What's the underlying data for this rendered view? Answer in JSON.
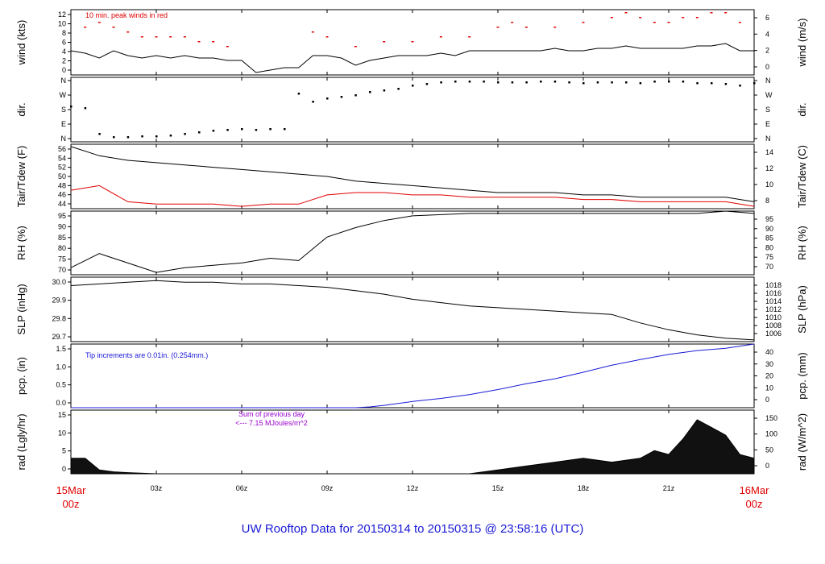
{
  "footer": {
    "title": "UW Rooftop Data for 20150314  to  20150315 @ 23:58:16  (UTC)"
  },
  "colors": {
    "black": "#000000",
    "red": "#e00000",
    "blue": "#1a1ad6",
    "purple": "#9900cc"
  },
  "xaxis": {
    "start_label_top": "15Mar",
    "start_label_bottom": "00z",
    "end_label_top": "16Mar",
    "end_label_bottom": "00z",
    "ticks": [
      "03z",
      "06z",
      "09z",
      "12z",
      "15z",
      "18z",
      "21z"
    ],
    "hours": [
      3,
      6,
      9,
      12,
      15,
      18,
      21
    ],
    "range_hours": [
      0,
      24
    ]
  },
  "chart_data": [
    {
      "type": "line",
      "id": "wind",
      "ylabel_left": "wind (kts)",
      "ylabel_right": "wind (m/s)",
      "ylim": [
        0,
        13.5
      ],
      "yticks_left": [
        "12",
        "10",
        "8",
        "6",
        "4",
        "2",
        "0"
      ],
      "yticks_right": [
        "6",
        "4",
        "2",
        "0"
      ],
      "annotation": "10 min. peak winds in red",
      "series": [
        {
          "name": "wind speed",
          "color": "#000000",
          "x": [
            0,
            0.5,
            1,
            1.5,
            2,
            2.5,
            3,
            3.5,
            4,
            4.5,
            5,
            5.5,
            6,
            6.5,
            7,
            7.5,
            8,
            8.5,
            9,
            9.5,
            10,
            10.5,
            11,
            11.5,
            12,
            12.5,
            13,
            13.5,
            14,
            14.5,
            15,
            15.5,
            16,
            16.5,
            17,
            17.5,
            18,
            18.5,
            19,
            19.5,
            20,
            20.5,
            21,
            21.5,
            22,
            22.5,
            23,
            23.5,
            24
          ],
          "values": [
            5,
            4.5,
            3.5,
            5,
            4,
            3.5,
            4,
            3.5,
            4,
            3.5,
            3.5,
            3,
            3,
            0.5,
            1,
            1.5,
            1.5,
            4,
            4,
            3.5,
            2,
            3,
            3.5,
            4,
            4,
            4,
            4.5,
            4,
            5,
            5,
            5,
            5,
            5,
            5,
            5.5,
            5,
            5,
            5.5,
            5.5,
            6,
            5.5,
            5.5,
            5.5,
            5.5,
            6,
            6,
            6.5,
            5,
            5
          ]
        },
        {
          "name": "10 min peak",
          "color": "#e00000",
          "x": [
            0.5,
            1,
            1.5,
            2,
            2.5,
            3,
            3.5,
            4,
            4.5,
            5,
            5.5,
            8.5,
            9,
            10,
            11,
            12,
            13,
            14,
            15,
            15.5,
            16,
            17,
            18,
            19,
            19.5,
            20,
            20.5,
            21,
            21.5,
            22,
            22.5,
            23,
            23.5
          ],
          "values": [
            10,
            11,
            10,
            9,
            8,
            8,
            8,
            8,
            7,
            7,
            6,
            9,
            8,
            6,
            7,
            7,
            8,
            8,
            10,
            11,
            10,
            10,
            11,
            12,
            13,
            12,
            11,
            11,
            12,
            12,
            13,
            13,
            11
          ]
        }
      ]
    },
    {
      "type": "scatter",
      "id": "dir",
      "ylabel_left": "dir.",
      "ylabel_right": "dir.",
      "yticks": [
        "N",
        "W",
        "S",
        "E",
        "N"
      ],
      "series": [
        {
          "name": "wind direction",
          "color": "#000000",
          "x": [
            0,
            0.5,
            1,
            1.5,
            2,
            2.5,
            3,
            3.5,
            4,
            4.5,
            5,
            5.5,
            6,
            6.5,
            7,
            7.5,
            8,
            8.5,
            9,
            9.5,
            10,
            10.5,
            11,
            11.5,
            12,
            12.5,
            13,
            13.5,
            14,
            14.5,
            15,
            15.5,
            16,
            16.5,
            17,
            17.5,
            18,
            18.5,
            19,
            19.5,
            20,
            20.5,
            21,
            21.5,
            22,
            22.5,
            23,
            23.5,
            24
          ],
          "values": [
            200,
            190,
            30,
            10,
            10,
            15,
            15,
            20,
            30,
            40,
            50,
            55,
            60,
            55,
            60,
            60,
            280,
            230,
            250,
            260,
            270,
            290,
            300,
            310,
            330,
            340,
            350,
            355,
            355,
            355,
            350,
            350,
            350,
            355,
            355,
            350,
            345,
            350,
            350,
            350,
            345,
            355,
            355,
            355,
            345,
            345,
            340,
            330,
            345
          ]
        }
      ]
    },
    {
      "type": "line",
      "id": "temp",
      "ylabel_left": "Tair/Tdew (F)",
      "ylabel_right": "Tair/Tdew (C)",
      "ylim": [
        44,
        58
      ],
      "yticks_left": [
        "56",
        "54",
        "52",
        "50",
        "48",
        "46",
        "44"
      ],
      "yticks_right": [
        "14",
        "12",
        "10",
        "8"
      ],
      "series": [
        {
          "name": "Tair",
          "color": "#000000",
          "x": [
            0,
            1,
            2,
            3,
            4,
            5,
            6,
            7,
            8,
            9,
            10,
            11,
            12,
            13,
            14,
            15,
            16,
            17,
            18,
            19,
            20,
            21,
            22,
            23,
            24
          ],
          "values": [
            57.5,
            55.5,
            54.5,
            54,
            53.5,
            53,
            52.5,
            52,
            51.5,
            51,
            50,
            49.5,
            49,
            48.5,
            48,
            47.5,
            47.5,
            47.5,
            47,
            47,
            46.5,
            46.5,
            46.5,
            46.5,
            45.5
          ]
        },
        {
          "name": "Tdew",
          "color": "#e00000",
          "x": [
            0,
            1,
            2,
            3,
            4,
            5,
            6,
            7,
            8,
            9,
            10,
            11,
            12,
            13,
            14,
            15,
            16,
            17,
            18,
            19,
            20,
            21,
            22,
            23,
            24
          ],
          "values": [
            48,
            49,
            45.5,
            45,
            45,
            45,
            44.5,
            45,
            45,
            47,
            47.5,
            47.5,
            47,
            47,
            46.5,
            46.5,
            46.5,
            46.5,
            46,
            46,
            45.5,
            45.5,
            45.5,
            45.5,
            44.5
          ]
        }
      ]
    },
    {
      "type": "line",
      "id": "rh",
      "ylabel_left": "RH (%)",
      "ylabel_right": "RH (%)",
      "ylim": [
        69,
        96
      ],
      "yticks_left": [
        "95",
        "90",
        "85",
        "80",
        "75",
        "70"
      ],
      "yticks_right": [
        "95",
        "90",
        "85",
        "80",
        "75",
        "70"
      ],
      "series": [
        {
          "name": "RH",
          "color": "#000000",
          "x": [
            0,
            1,
            2,
            3,
            4,
            5,
            6,
            7,
            8,
            8.5,
            9,
            10,
            11,
            12,
            13,
            14,
            15,
            16,
            17,
            18,
            19,
            20,
            21,
            22,
            23,
            24
          ],
          "values": [
            72,
            78,
            74,
            70,
            72,
            73,
            74,
            76,
            75,
            80,
            85,
            89,
            92,
            94,
            94.5,
            95,
            95,
            95,
            95,
            95,
            95,
            95,
            95,
            95,
            96,
            95
          ]
        }
      ]
    },
    {
      "type": "line",
      "id": "slp",
      "ylabel_left": "SLP (inHg)",
      "ylabel_right": "SLP (hPa)",
      "ylim": [
        29.68,
        30.06
      ],
      "yticks_left": [
        "30.0",
        "29.9",
        "29.8",
        "29.7"
      ],
      "yticks_right": [
        "1018",
        "1016",
        "1014",
        "1012",
        "1010",
        "1008",
        "1006"
      ],
      "series": [
        {
          "name": "SLP",
          "color": "#000000",
          "x": [
            0,
            1,
            2,
            3,
            4,
            5,
            6,
            7,
            8,
            9,
            10,
            11,
            12,
            13,
            14,
            15,
            16,
            17,
            18,
            19,
            20,
            21,
            22,
            23,
            24
          ],
          "values": [
            30.01,
            30.02,
            30.03,
            30.04,
            30.03,
            30.03,
            30.02,
            30.02,
            30.01,
            30.0,
            29.98,
            29.96,
            29.93,
            29.91,
            29.89,
            29.88,
            29.87,
            29.86,
            29.85,
            29.84,
            29.79,
            29.75,
            29.72,
            29.7,
            29.69
          ]
        }
      ]
    },
    {
      "type": "line",
      "id": "pcp",
      "ylabel_left": "pcp. (in)",
      "ylabel_right": "pcp. (mm)",
      "ylim": [
        0,
        1.65
      ],
      "yticks_left": [
        "1.5",
        "1.0",
        "0.5",
        "0.0"
      ],
      "yticks_right": [
        "40",
        "30",
        "20",
        "10",
        "0"
      ],
      "annotation": "Tip increments are 0.01in. (0.254mm.)",
      "series": [
        {
          "name": "cumulative precipitation",
          "color": "#1a1ad6",
          "x": [
            0,
            1,
            2,
            3,
            4,
            5,
            6,
            7,
            8,
            9,
            10,
            10.5,
            11,
            12,
            13,
            14,
            15,
            16,
            17,
            18,
            19,
            20,
            21,
            22,
            23,
            24
          ],
          "values": [
            0,
            0,
            0,
            0,
            0,
            0,
            0,
            0,
            0,
            0,
            0,
            0.02,
            0.06,
            0.16,
            0.24,
            0.34,
            0.47,
            0.62,
            0.75,
            0.92,
            1.1,
            1.25,
            1.38,
            1.48,
            1.54,
            1.65
          ]
        }
      ]
    },
    {
      "type": "area",
      "id": "rad",
      "ylabel_left": "rad (Lgly/hr)",
      "ylabel_right": "rad (W/m^2)",
      "ylim": [
        0,
        16.5
      ],
      "yticks_left": [
        "15",
        "10",
        "5",
        "0"
      ],
      "yticks_right": [
        "150",
        "100",
        "50",
        "0"
      ],
      "annotation_line1": "Sum of previous day",
      "annotation_line2": "<--- 7.15 MJoules/m^2",
      "series": [
        {
          "name": "solar radiation",
          "color": "#000000",
          "x": [
            0,
            0.5,
            1,
            1.5,
            2,
            3,
            4,
            5,
            6,
            7,
            8,
            9,
            10,
            11,
            12,
            13,
            14,
            15,
            16,
            17,
            18,
            19,
            20,
            20.5,
            21,
            21.5,
            22,
            22.5,
            23,
            23.5,
            24
          ],
          "values": [
            4,
            4,
            1,
            0.5,
            0.3,
            0,
            0,
            0,
            0,
            0,
            0,
            0,
            0,
            0,
            0,
            0,
            0,
            1,
            2,
            3,
            4,
            3,
            4,
            6,
            5,
            9,
            14,
            12,
            10,
            5,
            4
          ]
        }
      ]
    }
  ]
}
